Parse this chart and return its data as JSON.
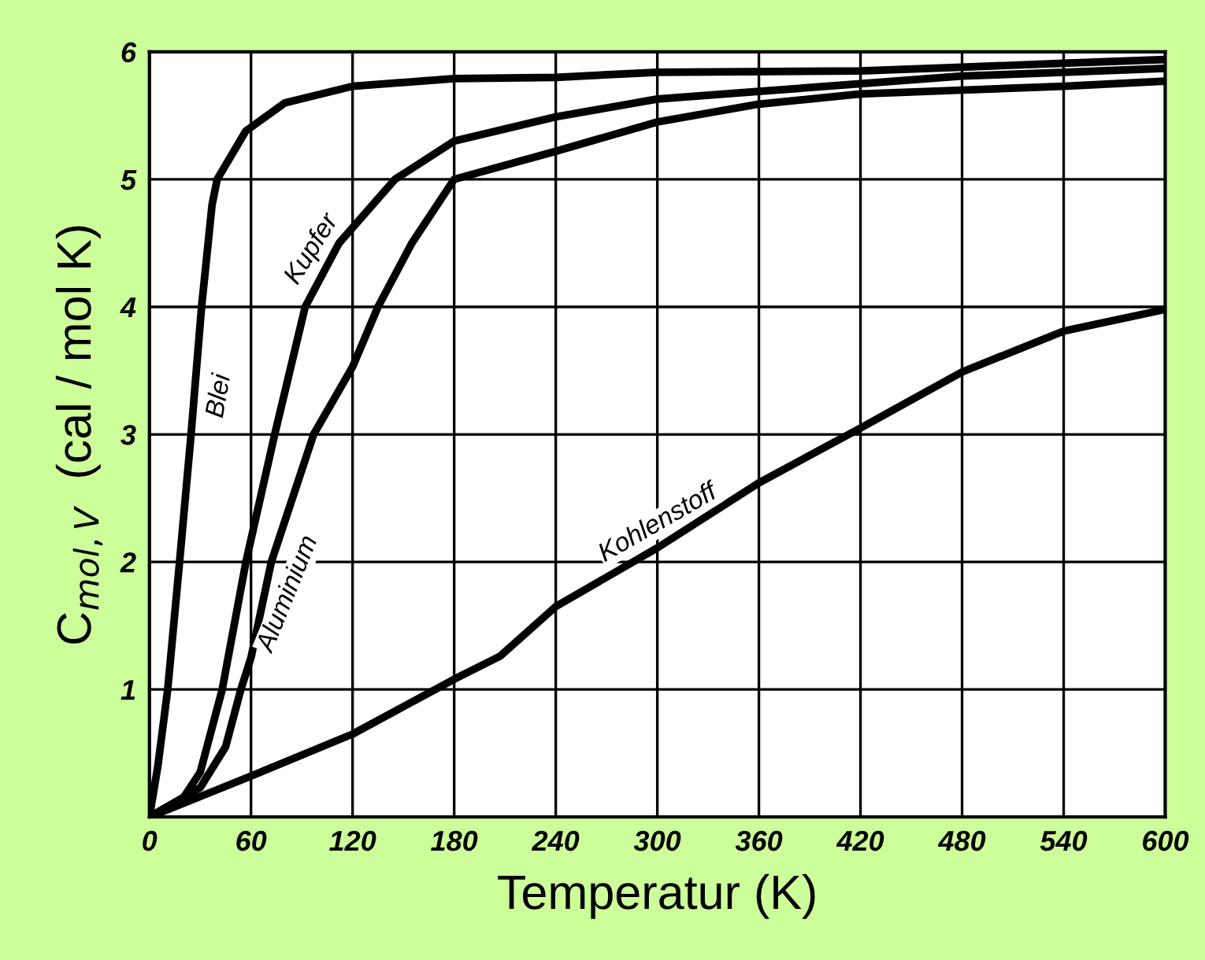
{
  "chart_data": {
    "type": "line",
    "xlabel": "Temperatur (K)",
    "ylabel": "C$_{mol,V}$  (cal / mol K)",
    "xlim": [
      0,
      600
    ],
    "ylim": [
      0,
      6
    ],
    "xticks": [
      0,
      60,
      120,
      180,
      240,
      300,
      360,
      420,
      480,
      540,
      600
    ],
    "yticks": [
      {
        "value": 0,
        "label": null
      },
      1,
      2,
      3,
      4,
      5,
      6
    ],
    "grid": true,
    "legend": false,
    "line_style": "solid",
    "marker": "none",
    "series": [
      {
        "name": "Blei",
        "color": "#000000",
        "x": [
          0,
          5,
          10.8,
          17.8,
          24.6,
          30.8,
          37,
          40,
          57,
          80,
          120,
          180,
          240,
          300,
          420,
          480,
          540,
          600
        ],
        "values": [
          0,
          0.4,
          1,
          2,
          3,
          4,
          4.8,
          5,
          5.38,
          5.6,
          5.73,
          5.79,
          5.8,
          5.84,
          5.85,
          5.88,
          5.91,
          5.94
        ]
      },
      {
        "name": "Kupfer",
        "color": "#000000",
        "x": [
          0,
          20,
          30,
          43,
          57,
          74,
          92,
          112,
          145,
          180,
          240,
          300,
          360,
          420,
          480,
          540,
          600
        ],
        "values": [
          0,
          0.15,
          0.35,
          1,
          2,
          3,
          4,
          4.5,
          5,
          5.3,
          5.49,
          5.63,
          5.69,
          5.75,
          5.81,
          5.84,
          5.87
        ]
      },
      {
        "name": "Aluminium",
        "color": "#000000",
        "x": [
          0,
          30,
          45,
          54,
          60,
          72,
          97,
          120,
          135,
          155,
          180,
          240,
          300,
          360,
          420,
          480,
          540,
          600
        ],
        "values": [
          0,
          0.23,
          0.55,
          1,
          1.25,
          2,
          3,
          3.53,
          4,
          4.5,
          5,
          5.22,
          5.45,
          5.59,
          5.67,
          5.7,
          5.73,
          5.77
        ]
      },
      {
        "name": "Kohlenstoff",
        "color": "#000000",
        "x": [
          0,
          60,
          120,
          180,
          207,
          240,
          300,
          360,
          420,
          480,
          540,
          600
        ],
        "values": [
          0,
          0.32,
          0.65,
          1.08,
          1.26,
          1.65,
          2.11,
          2.62,
          3.05,
          3.49,
          3.81,
          3.98
        ]
      }
    ]
  }
}
